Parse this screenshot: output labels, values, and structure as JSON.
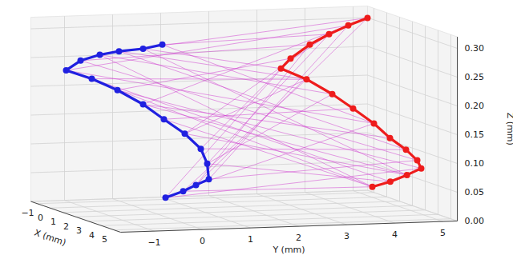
{
  "chart_data": {
    "type": "line3d",
    "xlabel": "X (mm)",
    "ylabel": "Y (mm)",
    "zlabel": "Z (mm)",
    "xlim": [
      -1.5,
      5.5
    ],
    "ylim": [
      -1.7,
      5.3
    ],
    "zlim": [
      0,
      0.32
    ],
    "xticks": [
      {
        "value": -1,
        "label": "−1"
      },
      0,
      1,
      2,
      3,
      4,
      5
    ],
    "yticks": [
      {
        "value": -1,
        "label": "−1"
      },
      0,
      1,
      2,
      3,
      4,
      5
    ],
    "zticks": [
      {
        "value": 0,
        "label": "0.00"
      },
      {
        "value": 0.05,
        "label": "0.05"
      },
      {
        "value": 0.1,
        "label": "0.10"
      },
      {
        "value": 0.15,
        "label": "0.15"
      },
      {
        "value": 0.2,
        "label": "0.20"
      },
      {
        "value": 0.25,
        "label": "0.25"
      },
      {
        "value": 0.3,
        "label": "0.30"
      }
    ],
    "grid": true,
    "series": [
      {
        "color": "#2020e0",
        "marker": "circle",
        "x": [
          -1,
          -1,
          -1,
          -1,
          -1,
          -1,
          -0.5,
          0,
          0.5,
          1,
          1.5,
          2,
          2.5,
          3,
          3.5,
          4,
          4.5
        ],
        "y": [
          0.9,
          0.5,
          0,
          -0.4,
          -0.8,
          -1.1,
          -0.7,
          -0.3,
          0.1,
          0.4,
          0.7,
          0.9,
          0.9,
          0.8,
          0.4,
          0,
          -0.5
        ],
        "z": [
          0.269,
          0.263,
          0.26,
          0.255,
          0.246,
          0.23,
          0.218,
          0.201,
          0.179,
          0.156,
          0.134,
          0.111,
          0.089,
          0.066,
          0.061,
          0.055,
          0.049
        ]
      },
      {
        "color": "#ee1c1c",
        "marker": "circle",
        "x": [
          0,
          0,
          0,
          0,
          0,
          0,
          0.5,
          1,
          1.5,
          2,
          2.5,
          3,
          3.5,
          4,
          4.2,
          4.4,
          4.5
        ],
        "y": [
          4.9,
          4.5,
          4.1,
          3.7,
          3.3,
          3.1,
          3.5,
          3.9,
          4.2,
          4.5,
          4.7,
          4.9,
          5.0,
          4.95,
          4.6,
          4.2,
          3.8
        ],
        "z": [
          0.312,
          0.3,
          0.286,
          0.269,
          0.246,
          0.229,
          0.213,
          0.19,
          0.168,
          0.145,
          0.123,
          0.106,
          0.091,
          0.081,
          0.072,
          0.063,
          0.056
        ]
      }
    ],
    "connections": {
      "color": "#cc33cc",
      "pairs": [
        [
          0,
          2
        ],
        [
          0,
          9
        ],
        [
          1,
          5
        ],
        [
          1,
          14
        ],
        [
          2,
          0
        ],
        [
          2,
          11
        ],
        [
          3,
          7
        ],
        [
          3,
          16
        ],
        [
          4,
          3
        ],
        [
          4,
          12
        ],
        [
          5,
          1
        ],
        [
          5,
          9
        ],
        [
          6,
          6
        ],
        [
          6,
          15
        ],
        [
          7,
          4
        ],
        [
          7,
          13
        ],
        [
          8,
          0
        ],
        [
          8,
          10
        ],
        [
          9,
          8
        ],
        [
          9,
          16
        ],
        [
          10,
          2
        ],
        [
          10,
          14
        ],
        [
          11,
          5
        ],
        [
          11,
          11
        ],
        [
          12,
          7
        ],
        [
          12,
          15
        ],
        [
          13,
          1
        ],
        [
          13,
          12
        ],
        [
          14,
          3
        ],
        [
          14,
          9
        ],
        [
          15,
          6
        ],
        [
          15,
          16
        ],
        [
          16,
          4
        ],
        [
          16,
          13
        ],
        [
          2,
          6
        ],
        [
          8,
          14
        ],
        [
          12,
          2
        ],
        [
          5,
          16
        ],
        [
          10,
          6
        ],
        [
          14,
          0
        ]
      ]
    }
  }
}
